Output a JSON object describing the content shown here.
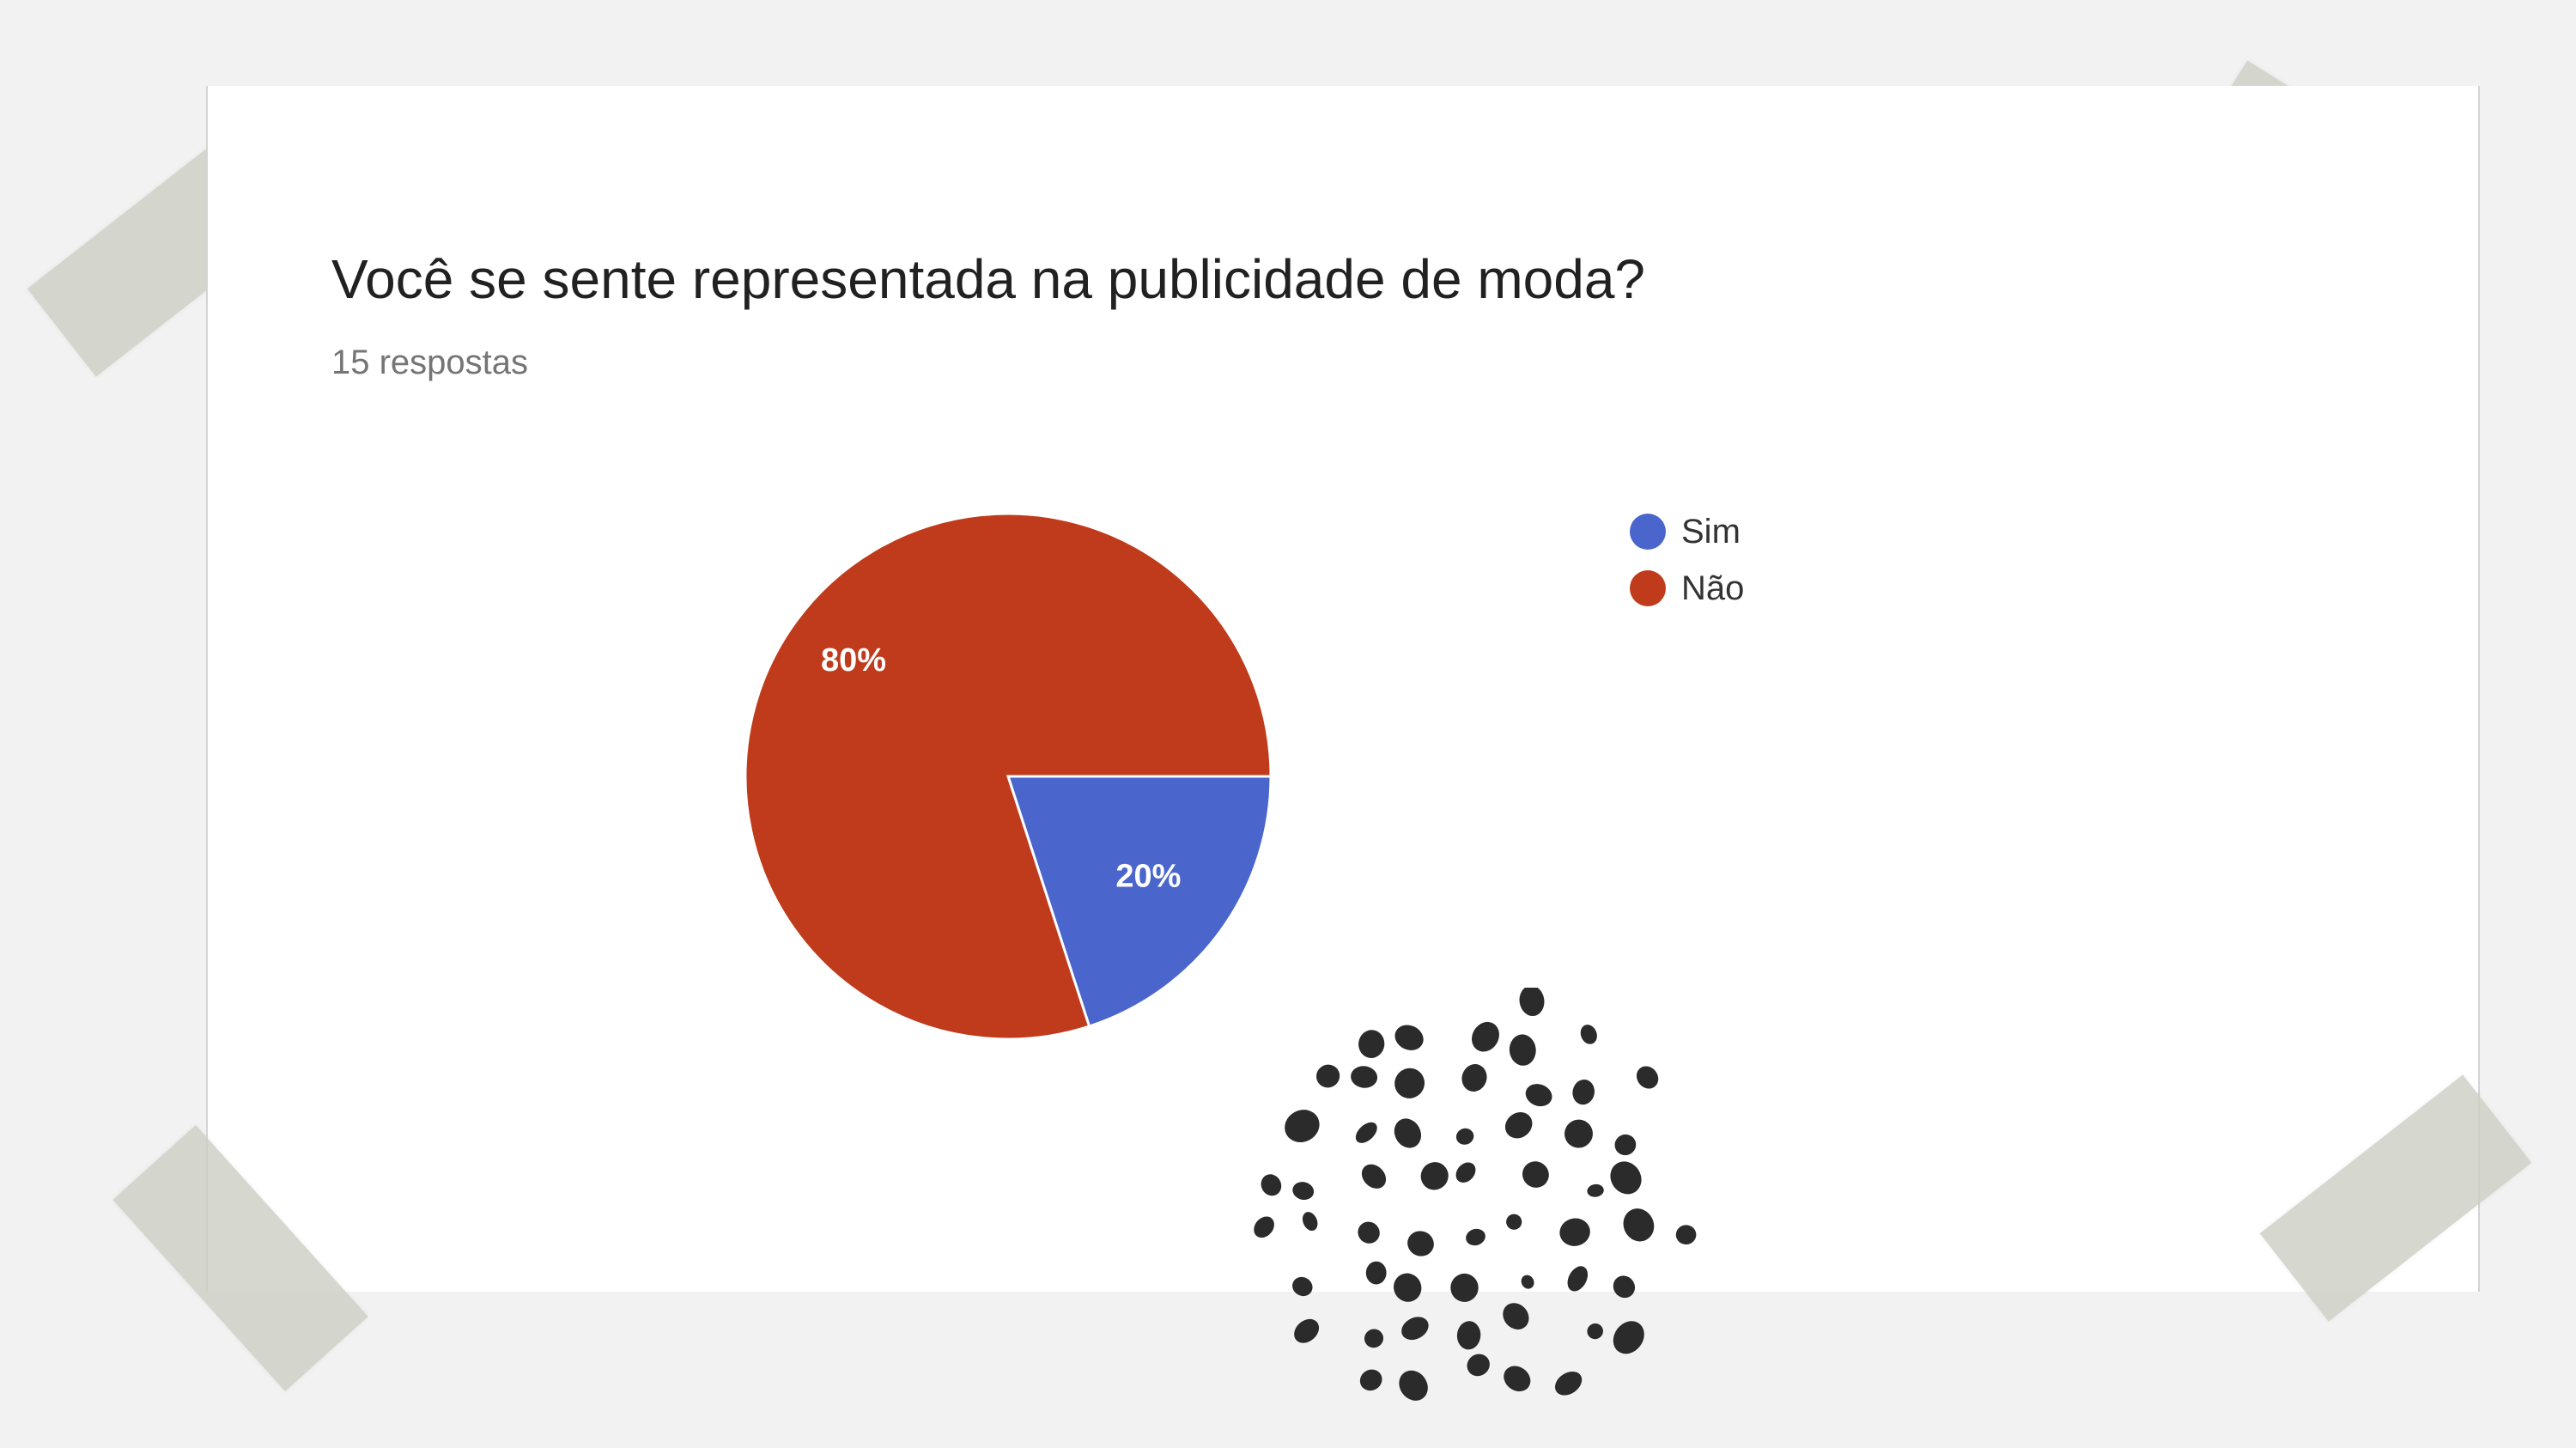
{
  "question": {
    "title": "Você se sente representada na publicidade de moda?",
    "responses": "15 respostas"
  },
  "chart_data": {
    "type": "pie",
    "slices": [
      {
        "label": "Sim",
        "value": 20,
        "display": "20%",
        "color": "#4a66cc"
      },
      {
        "label": "Não",
        "value": 80,
        "display": "80%",
        "color": "#bf3b1c"
      }
    ],
    "legend_position": "right"
  },
  "decorations": {
    "tape_color": "#cdcfc4",
    "dots_color": "#2b2b2b"
  }
}
